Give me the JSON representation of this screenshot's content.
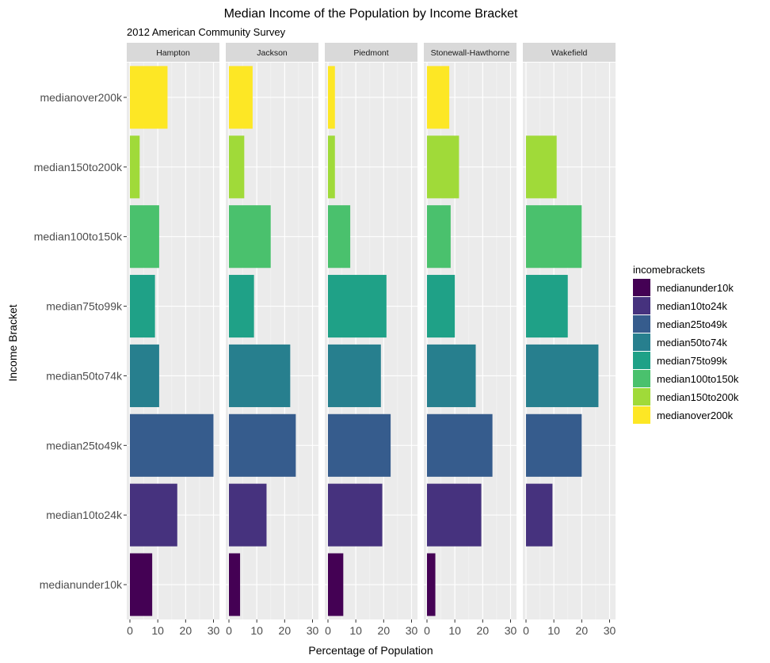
{
  "chart_data": {
    "type": "bar",
    "orientation": "horizontal",
    "title": "Median Income of the Population by Income Bracket",
    "subtitle": "2012 American Community Survey",
    "xlabel": "Percentage of Population",
    "ylabel": "Income Bracket",
    "xlim": [
      0,
      31
    ],
    "xticks": [
      "0",
      "10",
      "20",
      "30"
    ],
    "grid": true,
    "legend_title": "incomebrackets",
    "legend_position": "right",
    "categories": [
      "medianunder10k",
      "median10to24k",
      "median25to49k",
      "median50to74k",
      "median75to99k",
      "median100to150k",
      "median150to200k",
      "medianover200k"
    ],
    "colors": [
      "#440154",
      "#46327e",
      "#365c8d",
      "#277f8e",
      "#1fa187",
      "#4ac16d",
      "#a0da39",
      "#fde725"
    ],
    "facets": [
      {
        "name": "Hampton",
        "values": [
          8,
          17,
          30,
          10.5,
          9,
          10.5,
          3.5,
          13.5
        ]
      },
      {
        "name": "Jackson",
        "values": [
          4,
          13.5,
          24,
          22,
          9,
          15,
          5.5,
          8.5
        ]
      },
      {
        "name": "Piedmont",
        "values": [
          5.5,
          19.5,
          22.5,
          19,
          21,
          8,
          2.5,
          2.5
        ]
      },
      {
        "name": "Stonewall-Hawthorne",
        "values": [
          3,
          19.5,
          23.5,
          17.5,
          10,
          8.5,
          11.5,
          8
        ]
      },
      {
        "name": "Wakefield",
        "values": [
          0,
          9.5,
          20,
          26,
          15,
          20,
          11,
          0
        ]
      }
    ]
  }
}
